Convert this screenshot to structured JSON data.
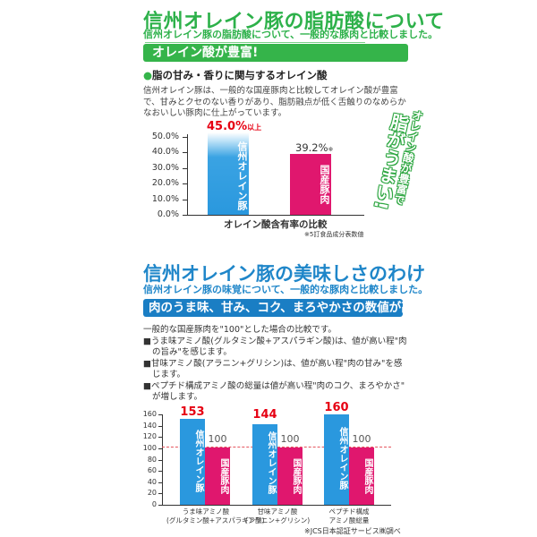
{
  "section1": {
    "title": "信州オレイン豚の脂肪酸について",
    "subtitle": "信州オレイン豚の脂肪酸について、一般的な豚肉と比較しました。",
    "banner": "オレイン酸が豊富!",
    "heading_bullet": "●",
    "heading": "脂の甘み・香りに関与するオレイン酸",
    "paragraph": "信州オレイン豚は、一般的な国産豚肉と比較してオレイン酸が豊富で、甘みとクセのない香りがあり、脂肪融点が低く舌触りのなめらかなおいしい豚肉に仕上がっています。",
    "callout_small": "オレイン酸が豊富で",
    "callout_large": "脂がうまい!"
  },
  "section2": {
    "title": "信州オレイン豚の美味しさのわけ",
    "subtitle": "信州オレイン豚の味覚について、一般的な豚肉と比較しました。",
    "banner": "肉のうま味、甘み、コク、まろやかさの数値が高い!",
    "paragraph_lines": [
      "一般的な国産豚肉を\"100\"とした場合の比較です。",
      "■うま味アミノ酸(グルタミン酸+アスパラギン酸)は、値が高い程\"肉",
      "の旨み\"を感じます。",
      "■甘味アミノ酸(アラニン+グリシン)は、値が高い程\"肉の甘み\"を感",
      "じます。",
      "■ペプチド構成アミノ酸の総量は値が高い程\"肉のコク、まろやかさ\"",
      "が増します。"
    ]
  },
  "chart_data": [
    {
      "type": "bar",
      "title": "オレイン酸含有率の比較",
      "xlabel": "オレイン酸含有率の比較",
      "ylabel": "",
      "categories": [
        "信州オレイン豚",
        "国産豚肉"
      ],
      "values": [
        45.0,
        39.2
      ],
      "value_labels": [
        "45.0%",
        "39.2%"
      ],
      "value_suffixes": [
        "以上",
        "※"
      ],
      "yticks": [
        "50.0%",
        "40.0%",
        "30.0%",
        "20.0%",
        "10.0%",
        "0.0%"
      ],
      "ylim": [
        0,
        50
      ],
      "colors": [
        "#2a98de",
        "#e0176e"
      ],
      "note": "※5訂食品成分表数値",
      "grid": false
    },
    {
      "type": "bar",
      "title": "",
      "xlabel": "",
      "ylabel": "",
      "categories": [
        {
          "line1": "うま味アミノ酸",
          "line2": "(グルタミン酸+アスパラギン酸)"
        },
        {
          "line1": "甘味アミノ酸",
          "line2": "(アラニン+グリシン)"
        },
        {
          "line1": "ペプチド構成",
          "line2": "アミノ酸総量"
        }
      ],
      "series": [
        {
          "name": "信州オレイン豚",
          "values": [
            153,
            144,
            160
          ],
          "color": "#2a98de"
        },
        {
          "name": "国産豚肉",
          "values": [
            100,
            100,
            100
          ],
          "color": "#e0176e"
        }
      ],
      "yticks": [
        "160",
        "140",
        "120",
        "100",
        "80",
        "60",
        "40",
        "20",
        "0"
      ],
      "ylim": [
        0,
        160
      ],
      "reference_line": 100,
      "note": "※JCS日本認証サービス㈱調べ",
      "grid": false
    }
  ],
  "labels": {
    "oleine_pig_v": "信州オレイン豚",
    "domestic_pork_v": "国産豚肉"
  }
}
